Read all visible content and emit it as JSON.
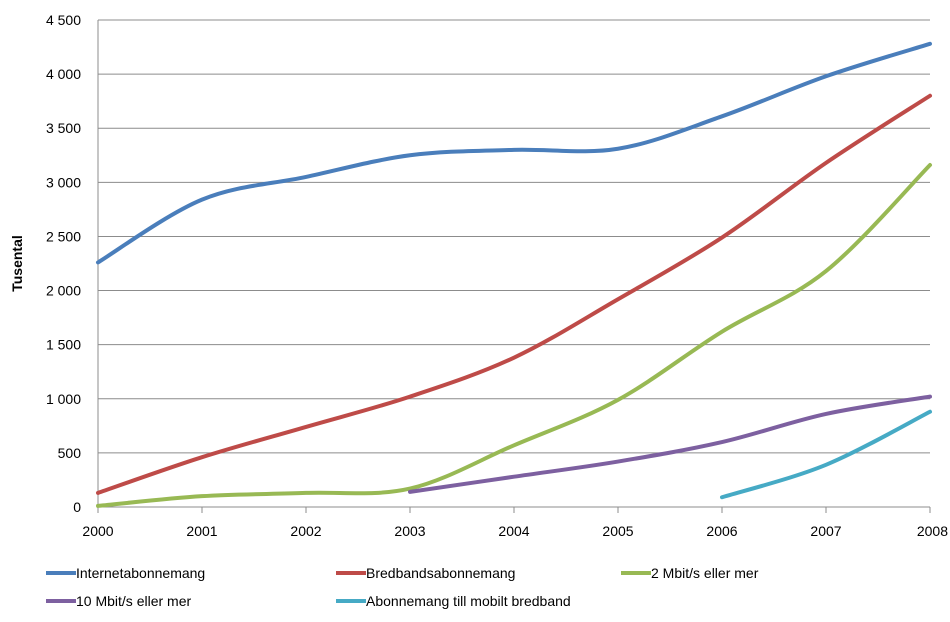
{
  "chart_data": {
    "type": "line",
    "title": "",
    "xlabel": "",
    "ylabel": "Tusental",
    "ylim": [
      0,
      4500
    ],
    "yticks": [
      0,
      500,
      1000,
      1500,
      2000,
      2500,
      3000,
      3500,
      4000,
      4500
    ],
    "ytick_labels": [
      "0",
      "500",
      "1 000",
      "1 500",
      "2 000",
      "2 500",
      "3 000",
      "3 500",
      "4 000",
      "4 500"
    ],
    "x": [
      "2000",
      "2001",
      "2002",
      "2003",
      "2004",
      "2005",
      "2006",
      "2007",
      "2008"
    ],
    "grid": true,
    "legend_position": "bottom",
    "series": [
      {
        "name": "Internetabonnemang",
        "color": "#4a7ebb",
        "values": [
          2260,
          2840,
          3050,
          3250,
          3300,
          3310,
          3610,
          3980,
          4280
        ]
      },
      {
        "name": "Bredbandsabonnemang",
        "color": "#be4b48",
        "values": [
          130,
          460,
          740,
          1020,
          1380,
          1920,
          2490,
          3180,
          3800
        ]
      },
      {
        "name": "2 Mbit/s eller mer",
        "color": "#98b954",
        "values": [
          10,
          100,
          130,
          170,
          570,
          990,
          1620,
          2180,
          3160
        ]
      },
      {
        "name": "10 Mbit/s eller mer",
        "color": "#7d60a0",
        "values": [
          null,
          null,
          null,
          140,
          280,
          420,
          600,
          860,
          1020
        ]
      },
      {
        "name": "Abonnemang till mobilt bredband",
        "color": "#46aac5",
        "values": [
          null,
          null,
          null,
          null,
          null,
          null,
          90,
          390,
          880
        ]
      }
    ]
  }
}
